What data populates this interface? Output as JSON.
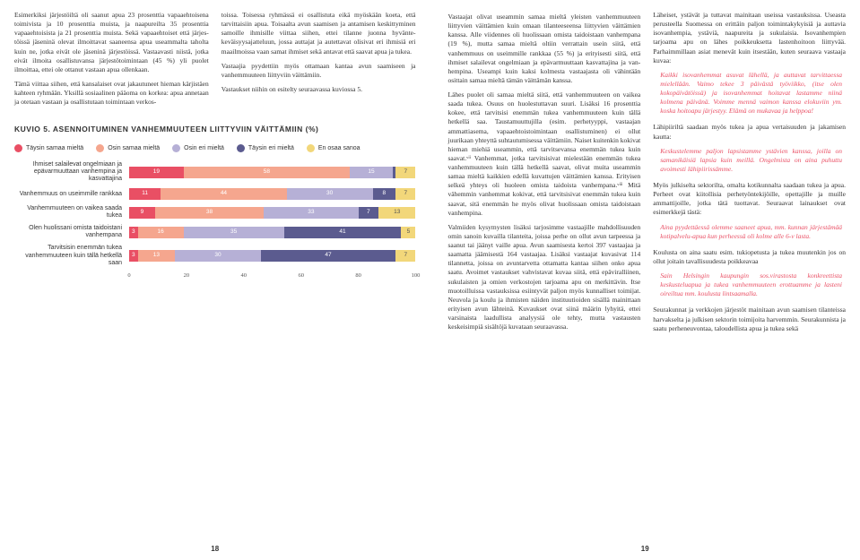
{
  "left": {
    "col1": {
      "p1": "Esimerkiksi järjestöiltä oli saanut apua 23 prosenttia vapaaehtoisena toimivista ja 10 prosenttia muista, ja naapureilta 35 prosenttia vapaaehtoisista ja 21 prosenttia muista. Sekä vapaaehtoiset että järjes­töissä jäseninä olevat ilmoittavat saaneensa apua useammalta taholta kuin ne, jotka eivät ole jäseninä järjestöissä. Vastaavasti niistä, jotka eivät ilmoita osallistuvansa järjestötoimintaan (45 %) yli puolet ilmoittaa, ettei ole ottanut vastaan apua ollenkaan.",
      "p2": "Tämä viittaa siihen, että kansalaiset ovat jakautu­neet hieman kärjistäen kahteen ryhmään. Yksillä sosiaalinen pääoma on korkea: apua annetaan ja otetaan vastaan ja osallistutaan toimintaan verkos-"
    },
    "col2": {
      "p1": "toissa. Toisessa ryhmässä ei osallistuta eikä myös­kään koeta, että tarvittaisiin apua. Toisaalta avun saamisen ja antamisen keskittyminen samoille ihmisille viittaa siihen, ettei tilanne juonna hyvänte­keväisyysajatteluun, jossa auttajat ja autettavat oli­sivat eri ihmisiä eri maailmoissa vaan samat ihmiset sekä antavat että saavat apua ja tukea.",
      "p2": "Vastaajia pyydettiin myös ottamaan kantaa avun saamiseen ja vanhemmuuteen liittyviin väittämiin.",
      "p3": "Vastaukset niihin on esitelty seuraavassa kuviossa 5."
    },
    "chart": {
      "title": "KUVIO 5.  ASENNOITUMINEN VANHEMMUUTEEN LIITTYVIIN VÄITTÄMIIN (%)",
      "legend": [
        {
          "label": "Täysin samaa mieltä",
          "color": "#e94f64"
        },
        {
          "label": "Osin samaa mieltä",
          "color": "#f5a68e"
        },
        {
          "label": "Osin eri mieltä",
          "color": "#b6b0d6"
        },
        {
          "label": "Täysin eri mieltä",
          "color": "#5b5b8f"
        },
        {
          "label": "En osaa sanoa",
          "color": "#f2d77a"
        }
      ],
      "rows": [
        {
          "label": "Ihmiset salailevat ongelmiaan ja epävarmuuttaan vanhempina ja kasvattajina",
          "vals": [
            19,
            58,
            15,
            1,
            7
          ]
        },
        {
          "label": "Vanhemmuus on useimmille rankkaa",
          "vals": [
            11,
            44,
            30,
            8,
            7
          ]
        },
        {
          "label": "Vanhemmuuteen on vaikea saada tukea",
          "vals": [
            9,
            38,
            33,
            7,
            13
          ]
        },
        {
          "label": "Olen huolissani omista taidoistani vanhempana",
          "vals": [
            3,
            16,
            35,
            41,
            5
          ]
        },
        {
          "label": "Tarvitsisin enemmän tukea vanhemmuuteen kuin tällä hetkellä saan",
          "vals": [
            3,
            13,
            30,
            47,
            7
          ]
        }
      ],
      "axis": [
        0,
        20,
        40,
        60,
        80,
        100
      ]
    },
    "pagenum": "18"
  },
  "right": {
    "col1": {
      "p1": "Vastaajat olivat useammin samaa mieltä yleisten vanhemmuuteen liittyvien väittämien kuin omaan tilanteeseensa liittyvien väittämien kanssa. Alle viidennes oli huolissaan omista taidoistaan vanhem­pana (19 %), mutta samaa mieltä oltiin verrattain usein siitä, että vanhemmuus on useimmille rank­kaa (55 %) ja erityisesti siitä, että ihmiset salailevat ongelmiaan ja epävarmuuttaan kasvattajina ja van­hempina. Useampi kuin kaksi kolmesta vastaajasta oli vähintään osittain samaa mieltä tämän väittämän kanssa.",
      "p2": "Lähes puolet oli samaa mieltä siitä, että vanhem­muuteen on vaikea saada tukea. Osuus on huoles­tuttavan suuri. Lisäksi 16 prosenttia kokee, että tar­vitsisi enemmän tukea vanhemmuuteen kuin tällä hetkellä saa. Taustamuuttujilla (esim. perhetyyppi, vastaajan ammattiasema, vapaaehtoistoimintaan osallistuminen) ei ollut juurikaan yhteyttä suhtautu­misessa väittämiin. Naiset kuitenkin kokivat hieman miehiä useammin, että tarvitsevansa enemmän tukea kuin saavat.ᵛⁱⁱ Vanhemmat, jotka tarvitsisivat mielestään enemmän tukea vanhemmuuteen kuin tällä hetkellä saavat, olivat muita useammin samaa mieltä kaikkien edellä kuvattujen väittämien kanssa. Erityisen selkeä yhteys oli huoleen omista taidoista vanhempana.ᵛⁱⁱⁱ Mitä vähemmin vanhemmat kokivat, että tarvitsisivat enemmän tukea kuin saavat, sitä enemmän he myös olivat huolissaan omista taidoistaan vanhempina.",
      "p3": "Valmiiden kysymysten lisäksi tarjosimme vastaajille mahdollisuuden omin sanoin kuvailla tilanteita, joissa perhe on ollut avun tarpeessa ja saanut tai jäänyt vaille apua. Avun saamisesta kertoi 397 vastaajaa ja saamatta jäämisestä 164 vastaajaa. Lisäksi vastaa­jat kuvasivat 114 tilannetta, joissa on avuntarvetta ottamatta kantaa siihen onko apua saatu. Avoimet vastaukset vahvistavat kuvaa siitä, että epäviralli­inen, sukulaisten ja omien verkostojen tarjoama apu on merkittävin. Itse muotoilluissa vastauksissa esiintyvät paljon myös kunnalliset toimijat. Neuvo­la ja koulu ja ihmisten näiden instituutioiden sisällä mainittaan erityisen avun lähteinä. Kuvaukset ovat siinä määrin lyhyitä, ettei varsinaista laadullista analyysiä ole tehty, mutta vastausten keskeisimpiä sisältöjä kuvataan seuraavassa."
    },
    "col2": {
      "p1": "Läheiset, ystävät ja tuttavat mainitaan useissa vastauksissa. Useasta perusteella Suomessa on erittäin paljon toimintakykyisiä ja auttavia iso­vanhempia, ystäviä, naapureita ja sukulaisia. Iso­vanhempien tarjoama apu on lähes poikkeuksetta lastenhoitoon liittyvää. Parhaimmillaan asiat mene­vät kuin itsestään, kuten seuraava vastaaja kuvaa:",
      "q1": "Kaikki isovanhemmat asuvat lähellä, ja auttavat tarvittaessa mielellään. Vaimo tekee 3 päivästä työviikko, (itse olen kokopäivätöissä) ja isovan­hemmat hoitavat lastamme niinä kolmena päivä­nä. Voimme mennä vaimon kanssa elokuviin ym. koska hoitoapu järjestyy. Elämä on mukavaa ja helppoa!",
      "p2": "Lähipiiriltä saadaan myös tukea ja apua vertaisuu­den ja jakamisen kautta:",
      "q2": "Keskustelemme paljon lapsistamme ystävien kanssa, joilla on samanikäisiä lapsia kuin meillä. Ongelmista on aina puhuttu avoimesti lähi­piirissämme.",
      "p3": "Myös julkiselta sektorilta, omalta kotikunnalta saadaan tukea ja apua. Perheet ovat kiitollisia perhetyöntekijöille, opettajille ja muille ammatti­joille, jotka tätä tuottavat. Seuraavat lainaukset ovat esimerkkejä tästä:",
      "q3": "Aina pyydettäessä olemme saaneet apua, mm. kunnan järjestämää kotipalvelu-apua kun perheessä oli kolme alle 6-v lasta.",
      "p4": "Koulusta on aina saatu esim. tukiopetusta ja tukea muutenkin jos on ollut joitain tavallisuudesta poikkeavaa",
      "q4": "Sain Helsingin kaupungin sos.virastosta konk­reettista keskusteluapua ja tukea vanhemmuuteen erottuamme ja lasteni oireiltua mm. koulusta lintsaamalla.",
      "p5": "Seurakunnat ja verkkojen järjestöt mainitaan avun saamisen tilanteissa harvakselta ja julkisen sektorin toimijoita harvemmin. Seurakunnista ja saatu perheneuvontaa, taloudellista apua ja tukea sekä"
    },
    "pagenum": "19",
    "quoteColor": "#e94f64"
  }
}
